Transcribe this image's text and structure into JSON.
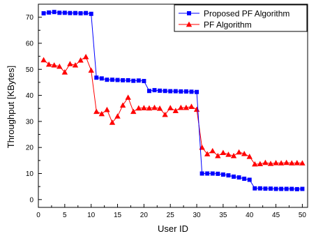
{
  "chart_data": {
    "type": "line",
    "xlabel": "User ID",
    "ylabel": "Throughput [KBytes]",
    "xlim": [
      0,
      51
    ],
    "ylim": [
      -3,
      75
    ],
    "xticks": [
      0,
      5,
      10,
      15,
      20,
      25,
      30,
      35,
      40,
      45,
      50
    ],
    "yticks": [
      0,
      10,
      20,
      30,
      40,
      50,
      60,
      70
    ],
    "grid": false,
    "legend_position": "top-right",
    "x": [
      1,
      2,
      3,
      4,
      5,
      6,
      7,
      8,
      9,
      10,
      11,
      12,
      13,
      14,
      15,
      16,
      17,
      18,
      19,
      20,
      21,
      22,
      23,
      24,
      25,
      26,
      27,
      28,
      29,
      30,
      31,
      32,
      33,
      34,
      35,
      36,
      37,
      38,
      39,
      40,
      41,
      42,
      43,
      44,
      45,
      46,
      47,
      48,
      49,
      50
    ],
    "series": [
      {
        "name": "Proposed PF Algorithm",
        "color": "#0000ff",
        "marker": "square",
        "values": [
          71.5,
          71.8,
          72.0,
          71.7,
          71.7,
          71.6,
          71.6,
          71.5,
          71.6,
          71.3,
          46.8,
          46.5,
          46.0,
          46.0,
          45.9,
          45.8,
          45.8,
          45.6,
          45.7,
          45.5,
          41.7,
          42.0,
          41.8,
          41.7,
          41.6,
          41.6,
          41.5,
          41.5,
          41.4,
          41.3,
          10.0,
          10.0,
          10.0,
          9.9,
          9.6,
          9.3,
          8.8,
          8.5,
          8.0,
          7.6,
          4.3,
          4.3,
          4.2,
          4.2,
          4.1,
          4.1,
          4.1,
          4.1,
          4.0,
          4.1
        ]
      },
      {
        "name": "PF Algorithm",
        "color": "#ff0000",
        "marker": "triangle",
        "values": [
          53.6,
          51.9,
          51.6,
          51.1,
          48.9,
          52.1,
          51.6,
          53.5,
          54.8,
          49.6,
          33.8,
          32.9,
          34.5,
          29.6,
          32.0,
          36.2,
          39.2,
          33.8,
          35.1,
          35.2,
          35.1,
          35.3,
          35.0,
          32.6,
          35.2,
          34.1,
          35.3,
          35.3,
          35.7,
          34.6,
          20.0,
          17.5,
          18.7,
          16.8,
          18.0,
          17.3,
          16.8,
          18.2,
          17.6,
          16.5,
          13.6,
          13.7,
          14.2,
          13.8,
          14.1,
          14.0,
          14.2,
          14.0,
          14.1,
          14.0
        ]
      }
    ]
  }
}
